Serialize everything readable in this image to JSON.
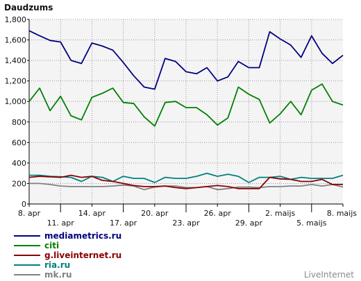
{
  "chart_data": {
    "type": "line",
    "title": "Daudzums",
    "brand": "LiveInternet",
    "ylim": [
      0,
      1800
    ],
    "y_ticks": [
      "0",
      "200",
      "400",
      "600",
      "800",
      "1,000",
      "1,200",
      "1,400",
      "1,600",
      "1,800"
    ],
    "x_ticks_upper": [
      "8. apr",
      "14. apr",
      "20. apr",
      "26. apr",
      "2. maijs",
      "8. maijs"
    ],
    "x_ticks_lower": [
      "11. apr",
      "17. apr",
      "23. apr",
      "29. apr",
      "5. maijs"
    ],
    "x": [
      "8. apr",
      "9. apr",
      "10. apr",
      "11. apr",
      "12. apr",
      "13. apr",
      "14. apr",
      "15. apr",
      "16. apr",
      "17. apr",
      "18. apr",
      "19. apr",
      "20. apr",
      "21. apr",
      "22. apr",
      "23. apr",
      "24. apr",
      "25. apr",
      "26. apr",
      "27. apr",
      "28. apr",
      "29. apr",
      "30. apr",
      "1. maijs",
      "2. maijs",
      "3. maijs",
      "4. maijs",
      "5. maijs",
      "6. maijs",
      "7. maijs",
      "8. maijs"
    ],
    "grid": true,
    "legend_position": "bottom-left",
    "series": [
      {
        "name": "mediametrics.ru",
        "color": "#000080",
        "values": [
          1690,
          1640,
          1595,
          1580,
          1400,
          1370,
          1570,
          1540,
          1500,
          1380,
          1250,
          1140,
          1120,
          1420,
          1390,
          1290,
          1270,
          1330,
          1200,
          1240,
          1390,
          1330,
          1330,
          1680,
          1610,
          1550,
          1430,
          1640,
          1470,
          1370,
          1450
        ]
      },
      {
        "name": "citi",
        "color": "#008000",
        "values": [
          1000,
          1130,
          910,
          1050,
          860,
          820,
          1040,
          1080,
          1130,
          990,
          980,
          850,
          760,
          990,
          1000,
          940,
          940,
          870,
          770,
          840,
          1140,
          1070,
          1020,
          790,
          880,
          1000,
          870,
          1110,
          1170,
          1000,
          965
        ]
      },
      {
        "name": "g.liveinternet.ru",
        "color": "#8b0000",
        "values": [
          260,
          270,
          265,
          260,
          280,
          260,
          270,
          230,
          220,
          200,
          180,
          170,
          170,
          175,
          160,
          150,
          160,
          170,
          180,
          170,
          150,
          150,
          150,
          260,
          245,
          240,
          220,
          220,
          240,
          190,
          190
        ]
      },
      {
        "name": "ria.ru",
        "color": "#008080",
        "values": [
          280,
          280,
          270,
          265,
          260,
          220,
          270,
          260,
          220,
          270,
          250,
          250,
          210,
          260,
          250,
          250,
          270,
          300,
          270,
          290,
          270,
          210,
          260,
          260,
          270,
          240,
          260,
          250,
          250,
          250,
          280
        ]
      },
      {
        "name": "mk.ru",
        "color": "#808080",
        "values": [
          200,
          200,
          190,
          175,
          170,
          170,
          170,
          170,
          175,
          185,
          175,
          140,
          165,
          175,
          175,
          160,
          160,
          170,
          140,
          150,
          165,
          165,
          160,
          170,
          170,
          175,
          175,
          190,
          175,
          190,
          165
        ]
      }
    ]
  }
}
